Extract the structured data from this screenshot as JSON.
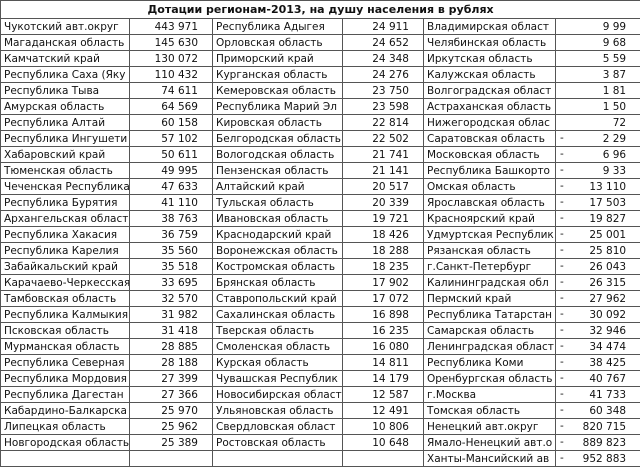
{
  "title": "Дотации регионам-2013, на душу населения в рублях",
  "col1": [
    {
      "name": "Чукотский авт.округ",
      "value": "443 971"
    },
    {
      "name": "Магаданская область",
      "value": "145 630"
    },
    {
      "name": "Камчатский край",
      "value": "130 072"
    },
    {
      "name": "Республика Саха (Яку",
      "value": "110 432"
    },
    {
      "name": "Республика Тыва",
      "value": "74 611"
    },
    {
      "name": "Амурская область",
      "value": "64 569"
    },
    {
      "name": "Республика Алтай",
      "value": "60 158"
    },
    {
      "name": "Республика Ингушети",
      "value": "57 102"
    },
    {
      "name": "Хабаровский край",
      "value": "50 611"
    },
    {
      "name": "Тюменская область",
      "value": "49 995"
    },
    {
      "name": "Чеченская Республика",
      "value": "47 633"
    },
    {
      "name": "Республика Бурятия",
      "value": "41 110"
    },
    {
      "name": "Архангельская област",
      "value": "38 763"
    },
    {
      "name": "Республика Хакасия",
      "value": "36 759"
    },
    {
      "name": "Республика Карелия",
      "value": "35 560"
    },
    {
      "name": "Забайкальский край",
      "value": "35 518"
    },
    {
      "name": "Карачаево-Черкесская",
      "value": "33 695"
    },
    {
      "name": "Тамбовская область",
      "value": "32 570"
    },
    {
      "name": "Республика Калмыкия",
      "value": "31 982"
    },
    {
      "name": "Псковская область",
      "value": "31 418"
    },
    {
      "name": "Мурманская область",
      "value": "28 885"
    },
    {
      "name": "Республика Северная",
      "value": "28 188"
    },
    {
      "name": "Республика Мордовия",
      "value": "27 399"
    },
    {
      "name": "Республика Дагестан",
      "value": "27 366"
    },
    {
      "name": "Кабардино-Балкарска",
      "value": "25 970"
    },
    {
      "name": "Липецкая область",
      "value": "25 962"
    },
    {
      "name": "Новгородская область",
      "value": "25 389"
    }
  ],
  "col2": [
    {
      "name": "Республика Адыгея",
      "value": "24 911"
    },
    {
      "name": "Орловская область",
      "value": "24 652"
    },
    {
      "name": "Приморский край",
      "value": "24 348"
    },
    {
      "name": "Курганская область",
      "value": "24 276"
    },
    {
      "name": "Кемеровская область",
      "value": "23 750"
    },
    {
      "name": "Республика Марий Эл",
      "value": "23 598"
    },
    {
      "name": "Кировская область",
      "value": "22 814"
    },
    {
      "name": "Белгородская область",
      "value": "22 502"
    },
    {
      "name": "Вологодская область",
      "value": "21 741"
    },
    {
      "name": "Пензенская область",
      "value": "21 141"
    },
    {
      "name": "Алтайский край",
      "value": "20 517"
    },
    {
      "name": "Тульская область",
      "value": "20 339"
    },
    {
      "name": "Ивановская область",
      "value": "19 721"
    },
    {
      "name": "Краснодарский край",
      "value": "18 426"
    },
    {
      "name": "Воронежская область",
      "value": "18 288"
    },
    {
      "name": "Костромская область",
      "value": "18 235"
    },
    {
      "name": "Брянская область",
      "value": "17 902"
    },
    {
      "name": "Ставропольский край",
      "value": "17 072"
    },
    {
      "name": "Сахалинская область",
      "value": "16 898"
    },
    {
      "name": "Тверская область",
      "value": "16 235"
    },
    {
      "name": "Смоленская область",
      "value": "16 080"
    },
    {
      "name": "Курская область",
      "value": "14 811"
    },
    {
      "name": "Чувашская Республик",
      "value": "14 179"
    },
    {
      "name": "Новосибирская област",
      "value": "12 587"
    },
    {
      "name": "Ульяновская область",
      "value": "12 491"
    },
    {
      "name": "Свердловская област",
      "value": "10 806"
    },
    {
      "name": "Ростовская область",
      "value": "10 648"
    }
  ],
  "col3": [
    {
      "name": "Владимирская област",
      "sign": "",
      "value": "9 99"
    },
    {
      "name": "Челябинская область",
      "sign": "",
      "value": "9 68"
    },
    {
      "name": "Иркутская область",
      "sign": "",
      "value": "5 59"
    },
    {
      "name": "Калужская область",
      "sign": "",
      "value": "3 87"
    },
    {
      "name": "Волгоградская област",
      "sign": "",
      "value": "1 81"
    },
    {
      "name": "Астраханская область",
      "sign": "",
      "value": "1 50"
    },
    {
      "name": "Нижегородская облас",
      "sign": "",
      "value": "72"
    },
    {
      "name": "Саратовская область",
      "sign": "-",
      "value": "2 29"
    },
    {
      "name": "Московская область",
      "sign": "-",
      "value": "6 96"
    },
    {
      "name": "Республика Башкорто",
      "sign": "-",
      "value": "9 33"
    },
    {
      "name": "Омская область",
      "sign": "-",
      "value": "13 110"
    },
    {
      "name": "Ярославская область",
      "sign": "-",
      "value": "17 503"
    },
    {
      "name": "Красноярский край",
      "sign": "-",
      "value": "19 827"
    },
    {
      "name": "Удмуртская Республик",
      "sign": "-",
      "value": "25 001"
    },
    {
      "name": "Рязанская область",
      "sign": "-",
      "value": "25 810"
    },
    {
      "name": "г.Санкт-Петербург",
      "sign": "-",
      "value": "26 043"
    },
    {
      "name": "Калининградская обл",
      "sign": "-",
      "value": "26 315"
    },
    {
      "name": "Пермский край",
      "sign": "-",
      "value": "27 962"
    },
    {
      "name": "Республика Татарстан",
      "sign": "-",
      "value": "30 092"
    },
    {
      "name": "Самарская область",
      "sign": "-",
      "value": "32 946"
    },
    {
      "name": "Ленинградская област",
      "sign": "-",
      "value": "34 474"
    },
    {
      "name": "Республика Коми",
      "sign": "-",
      "value": "38 425"
    },
    {
      "name": "Оренбургская область",
      "sign": "-",
      "value": "40 767"
    },
    {
      "name": "г.Москва",
      "sign": "-",
      "value": "41 733"
    },
    {
      "name": "Томская область",
      "sign": "-",
      "value": "60 348"
    },
    {
      "name": "Ненецкий авт.округ",
      "sign": "-",
      "value": "820 715"
    },
    {
      "name": "Ямало-Ненецкий авт.о",
      "sign": "-",
      "value": "889 823"
    },
    {
      "name": "Ханты-Мансийский ав",
      "sign": "-",
      "value": "952 883"
    }
  ]
}
